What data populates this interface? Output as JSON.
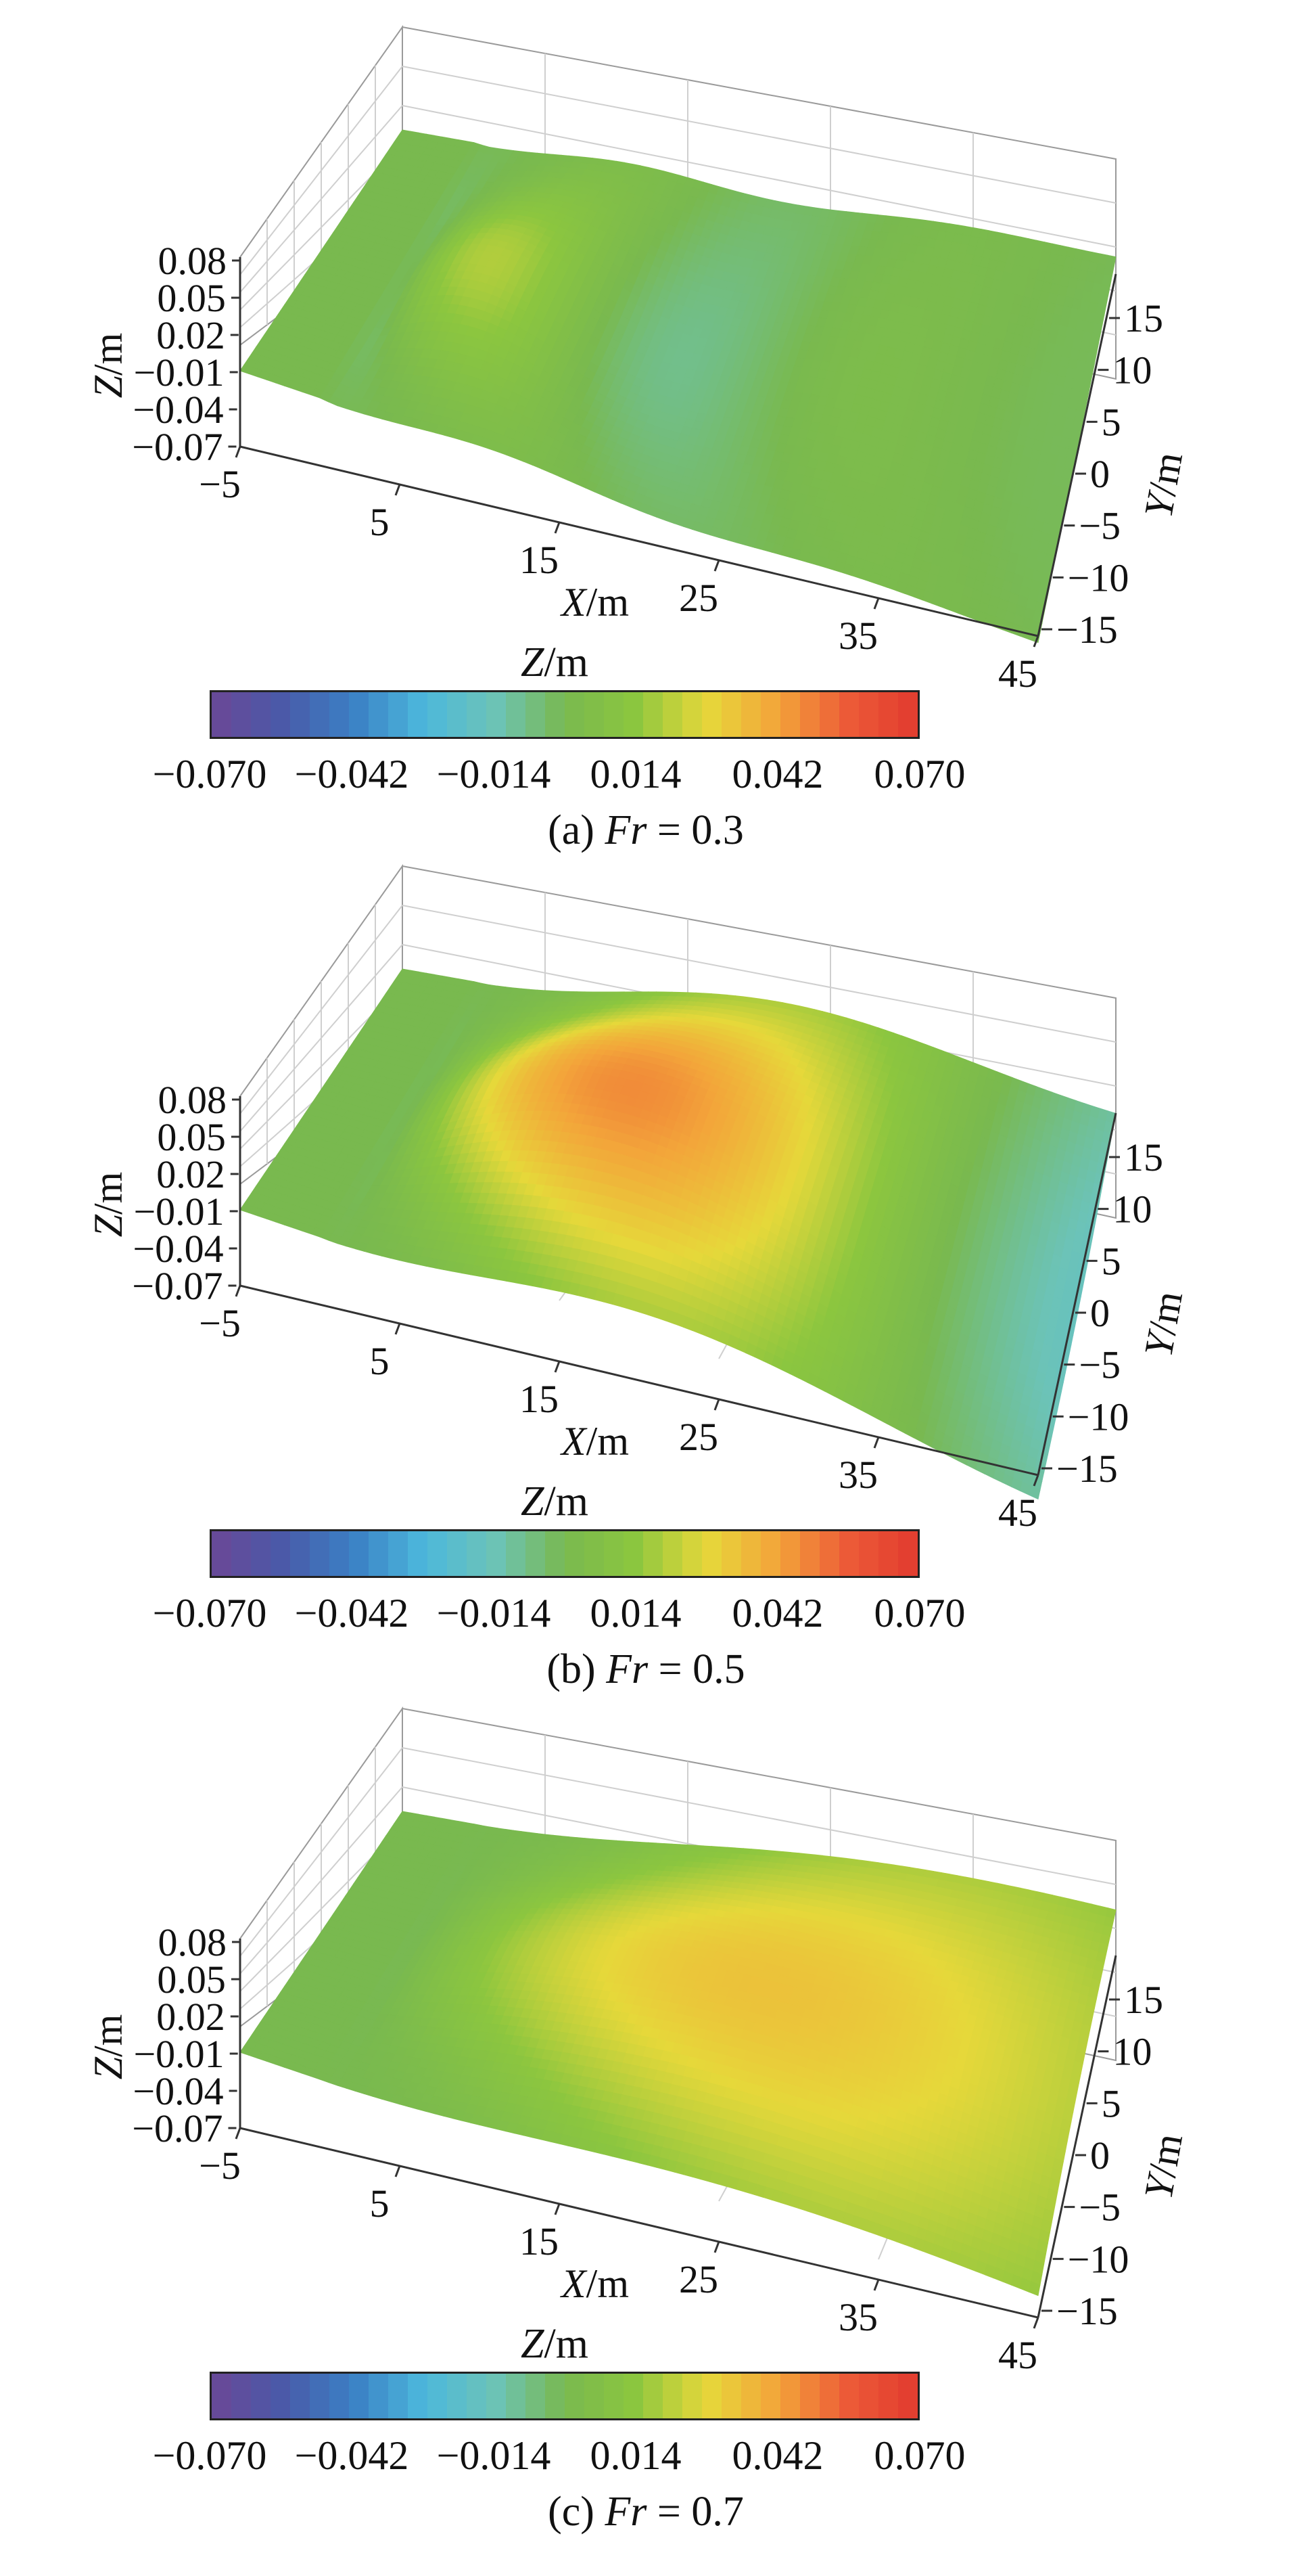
{
  "panels": [
    {
      "caption_prefix": "(a) ",
      "caption_var": "Fr",
      "caption_suffix": " = 0.3",
      "fr": 0.3
    },
    {
      "caption_prefix": "(b) ",
      "caption_var": "Fr",
      "caption_suffix": " = 0.5",
      "fr": 0.5
    },
    {
      "caption_prefix": "(c) ",
      "caption_var": "Fr",
      "caption_suffix": " = 0.7",
      "fr": 0.7
    }
  ],
  "axes": {
    "x_label_var": "X",
    "x_label_unit": "/m",
    "y_label_var": "Y",
    "y_label_unit": "/m",
    "z_label_var": "Z",
    "z_label_unit": "/m",
    "x_ticks": [
      "−5",
      "5",
      "15",
      "25",
      "35",
      "45"
    ],
    "y_ticks": [
      "−15",
      "−10",
      "−5",
      "0",
      "5",
      "10",
      "15"
    ],
    "z_ticks": [
      "−0.07",
      "−0.04",
      "−0.01",
      "0.02",
      "0.05",
      "0.08"
    ]
  },
  "colorbar": {
    "label_var": "Z",
    "label_unit": "/m",
    "ticks": [
      "−0.070",
      "−0.042",
      "−0.014",
      "0.014",
      "0.042",
      "0.070"
    ],
    "min": -0.07,
    "max": 0.07,
    "colors": [
      "#6a4796",
      "#4a5aa8",
      "#3b7fc4",
      "#4cb8dc",
      "#6cc3b8",
      "#79b94f",
      "#8cc63f",
      "#e6d83a",
      "#f3a53a",
      "#ec5b37",
      "#e23a2f"
    ]
  },
  "chart_data": [
    {
      "type": "surface",
      "title": "(a) Fr = 0.3",
      "xlabel": "X/m",
      "ylabel": "Y/m",
      "zlabel": "Z/m",
      "xlim": [
        -5,
        45
      ],
      "ylim": [
        -15,
        15
      ],
      "zlim": [
        -0.07,
        0.08
      ],
      "colorbar_range": [
        -0.07,
        0.07
      ]
    },
    {
      "type": "surface",
      "title": "(b) Fr = 0.5",
      "xlabel": "X/m",
      "ylabel": "Y/m",
      "zlabel": "Z/m",
      "xlim": [
        -5,
        45
      ],
      "ylim": [
        -15,
        15
      ],
      "zlim": [
        -0.07,
        0.08
      ],
      "colorbar_range": [
        -0.07,
        0.07
      ]
    },
    {
      "type": "surface",
      "title": "(c) Fr = 0.7",
      "xlabel": "X/m",
      "ylabel": "Y/m",
      "zlabel": "Z/m",
      "xlim": [
        -5,
        45
      ],
      "ylim": [
        -15,
        15
      ],
      "zlim": [
        -0.07,
        0.08
      ],
      "colorbar_range": [
        -0.07,
        0.07
      ]
    }
  ]
}
